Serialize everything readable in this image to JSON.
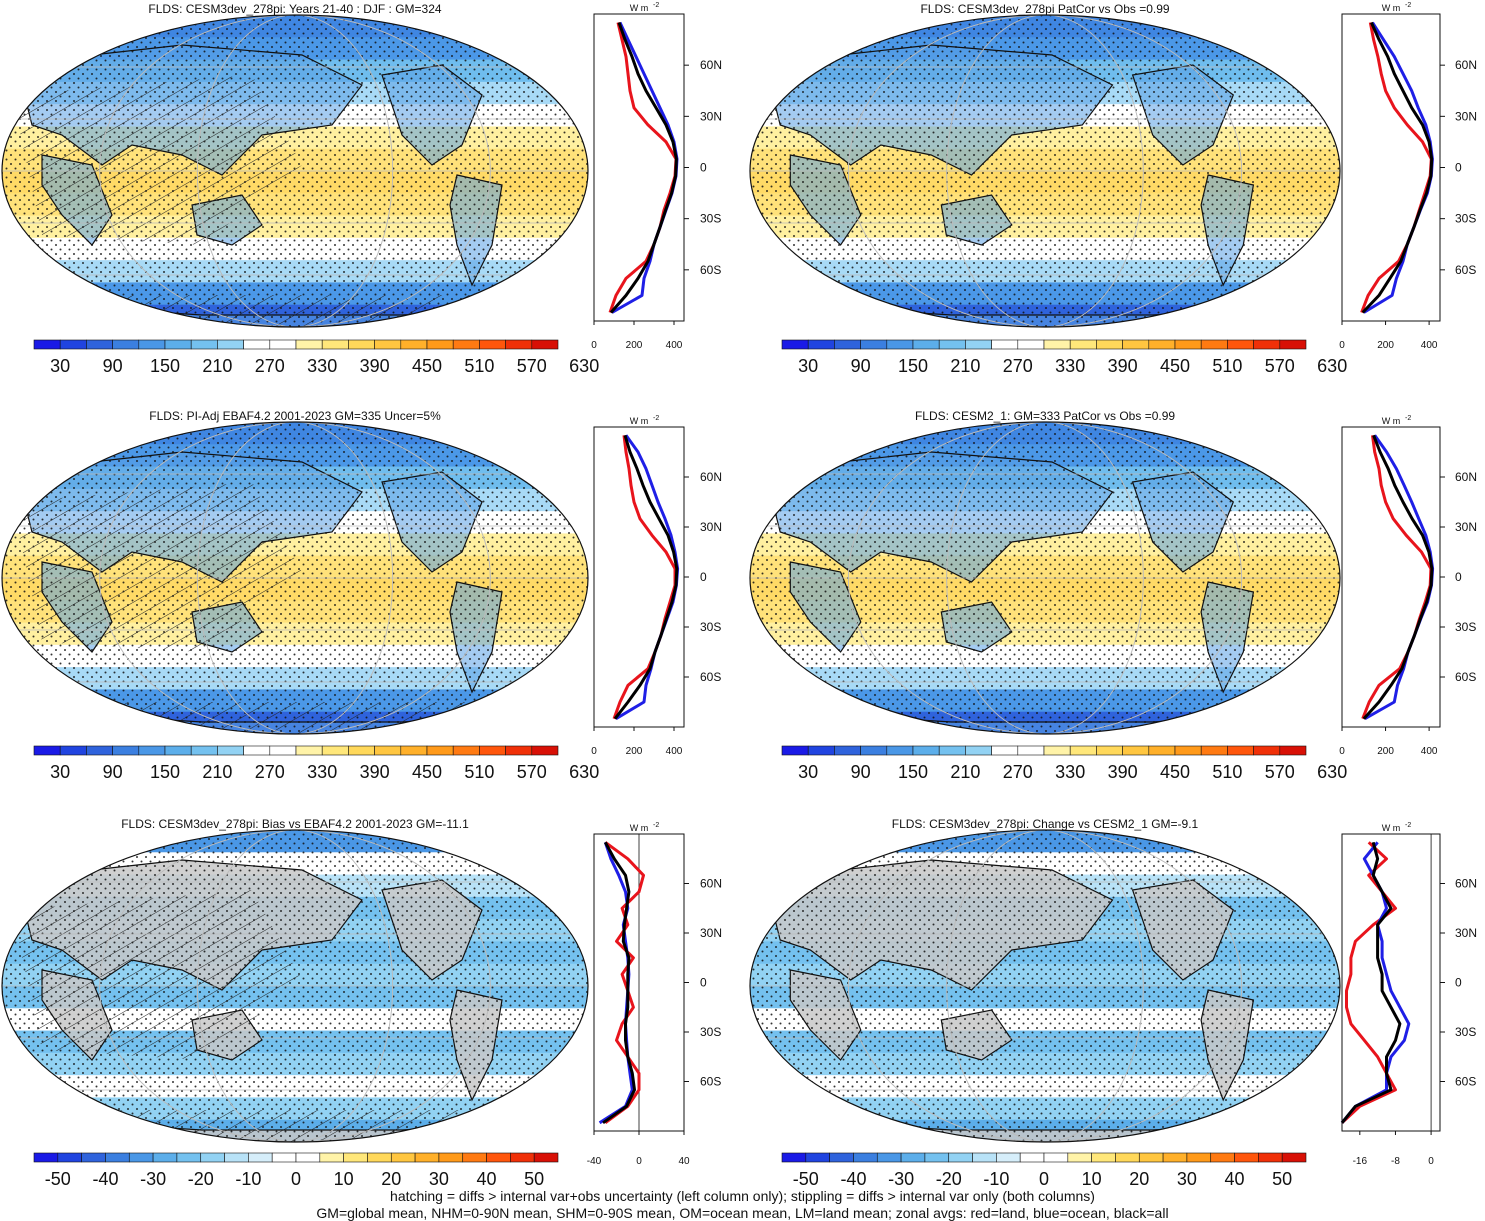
{
  "chart_data": [
    {
      "type": "heatmap",
      "title": "FLDS: CESM3dev_278pi: Years 21-40 : DJF : GM=324",
      "variant": "mean",
      "colorbar": {
        "ticks": [
          "30",
          "90",
          "150",
          "210",
          "270",
          "330",
          "390",
          "450",
          "510",
          "570",
          "630"
        ]
      },
      "zonal_avg": {
        "unit_label": "W m",
        "unit_sup": "-2",
        "xlim": [
          0,
          450
        ],
        "x_ticks": [
          "0",
          "200",
          "400"
        ],
        "lat_ticks": [
          "60N",
          "30N",
          "0",
          "30S",
          "60S"
        ],
        "lat": [
          85,
          75,
          65,
          55,
          45,
          35,
          25,
          15,
          5,
          -5,
          -15,
          -25,
          -35,
          -45,
          -55,
          -65,
          -75,
          -85
        ],
        "series": [
          {
            "name": "red=land",
            "color": "#e8141c",
            "values": [
              120,
              140,
              160,
              170,
              180,
              200,
              270,
              360,
              410,
              405,
              380,
              350,
              330,
              300,
              260,
              160,
              110,
              80
            ]
          },
          {
            "name": "blue=ocean",
            "color": "#1f1fe6",
            "values": [
              130,
              170,
              210,
              250,
              290,
              330,
              370,
              400,
              415,
              410,
              390,
              360,
              330,
              300,
              280,
              250,
              240,
              90
            ]
          },
          {
            "name": "black=all",
            "color": "#000000",
            "values": [
              125,
              155,
              190,
              220,
              260,
              310,
              360,
              395,
              412,
              408,
              388,
              358,
              330,
              300,
              270,
              220,
              160,
              85
            ]
          }
        ]
      }
    },
    {
      "type": "heatmap",
      "title": "FLDS: CESM3dev_278pi PatCor vs Obs =0.99",
      "variant": "mean",
      "colorbar": {
        "ticks": [
          "30",
          "90",
          "150",
          "210",
          "270",
          "330",
          "390",
          "450",
          "510",
          "570",
          "630"
        ]
      },
      "zonal_avg": {
        "unit_label": "W m",
        "unit_sup": "-2",
        "xlim": [
          0,
          450
        ],
        "x_ticks": [
          "0",
          "200",
          "400"
        ],
        "lat_ticks": [
          "60N",
          "30N",
          "0",
          "30S",
          "60S"
        ],
        "lat": [
          85,
          75,
          65,
          55,
          45,
          35,
          25,
          15,
          5,
          -5,
          -15,
          -25,
          -35,
          -45,
          -55,
          -65,
          -75,
          -85
        ],
        "series": [
          {
            "name": "red=land",
            "color": "#e8141c",
            "values": [
              130,
              145,
              165,
              180,
              200,
              240,
              300,
              370,
              410,
              405,
              380,
              355,
              330,
              300,
              260,
              170,
              120,
              90
            ]
          },
          {
            "name": "blue=ocean",
            "color": "#1f1fe6",
            "values": [
              140,
              190,
              240,
              280,
              320,
              350,
              385,
              405,
              415,
              410,
              392,
              360,
              330,
              300,
              280,
              250,
              230,
              100
            ]
          },
          {
            "name": "black=all",
            "color": "#000000",
            "values": [
              135,
              170,
              210,
              240,
              280,
              320,
              370,
              400,
              412,
              408,
              388,
              358,
              330,
              300,
              270,
              220,
              170,
              95
            ]
          }
        ]
      }
    },
    {
      "type": "heatmap",
      "title": "FLDS: PI-Adj EBAF4.2 2001-2023 GM=335 Uncer=5%",
      "variant": "mean",
      "colorbar": {
        "ticks": [
          "30",
          "90",
          "150",
          "210",
          "270",
          "330",
          "390",
          "450",
          "510",
          "570",
          "630"
        ]
      },
      "zonal_avg": {
        "unit_label": "W m",
        "unit_sup": "-2",
        "xlim": [
          0,
          450
        ],
        "x_ticks": [
          "0",
          "200",
          "400"
        ],
        "lat_ticks": [
          "60N",
          "30N",
          "0",
          "30S",
          "60S"
        ],
        "lat": [
          85,
          75,
          65,
          55,
          45,
          35,
          25,
          15,
          5,
          -5,
          -15,
          -25,
          -35,
          -45,
          -55,
          -65,
          -75,
          -85
        ],
        "series": [
          {
            "name": "red=land",
            "color": "#e8141c",
            "values": [
              150,
              160,
              175,
              185,
              200,
              230,
              290,
              360,
              405,
              405,
              380,
              355,
              335,
              305,
              270,
              170,
              130,
              100
            ]
          },
          {
            "name": "blue=ocean",
            "color": "#1f1fe6",
            "values": [
              160,
              220,
              260,
              290,
              320,
              355,
              385,
              405,
              418,
              412,
              395,
              365,
              335,
              305,
              285,
              260,
              250,
              110
            ]
          },
          {
            "name": "black=all",
            "color": "#000000",
            "values": [
              155,
              180,
              215,
              245,
              280,
              325,
              370,
              398,
              414,
              410,
              390,
              362,
              335,
              305,
              280,
              230,
              170,
              105
            ]
          }
        ]
      }
    },
    {
      "type": "heatmap",
      "title": "FLDS: CESM2_1: GM=333 PatCor vs Obs =0.99",
      "variant": "mean",
      "colorbar": {
        "ticks": [
          "30",
          "90",
          "150",
          "210",
          "270",
          "330",
          "390",
          "450",
          "510",
          "570",
          "630"
        ]
      },
      "zonal_avg": {
        "unit_label": "W m",
        "unit_sup": "-2",
        "xlim": [
          0,
          450
        ],
        "x_ticks": [
          "0",
          "200",
          "400"
        ],
        "lat_ticks": [
          "60N",
          "30N",
          "0",
          "30S",
          "60S"
        ],
        "lat": [
          85,
          75,
          65,
          55,
          45,
          35,
          25,
          15,
          5,
          -5,
          -15,
          -25,
          -35,
          -45,
          -55,
          -65,
          -75,
          -85
        ],
        "series": [
          {
            "name": "red=land",
            "color": "#e8141c",
            "values": [
              140,
              150,
              170,
              180,
              200,
              235,
              295,
              365,
              408,
              405,
              382,
              356,
              333,
              303,
              265,
              170,
              125,
              95
            ]
          },
          {
            "name": "blue=ocean",
            "color": "#1f1fe6",
            "values": [
              150,
              205,
              250,
              285,
              320,
              352,
              385,
              405,
              416,
              411,
              393,
              362,
              333,
              303,
              283,
              255,
              240,
              105
            ]
          },
          {
            "name": "black=all",
            "color": "#000000",
            "values": [
              145,
              175,
              212,
              242,
              280,
              322,
              370,
              399,
              413,
              409,
              389,
              360,
              333,
              303,
              275,
              225,
              170,
              100
            ]
          }
        ]
      }
    },
    {
      "type": "heatmap",
      "title": "FLDS: CESM3dev_278pi: Bias vs EBAF4.2 2001-2023 GM=-11.1",
      "variant": "diff",
      "colorbar": {
        "ticks": [
          "-50",
          "-40",
          "-30",
          "-20",
          "-10",
          "0",
          "10",
          "20",
          "30",
          "40",
          "50"
        ]
      },
      "zonal_avg": {
        "unit_label": "W m",
        "unit_sup": "-2",
        "xlim": [
          -40,
          40
        ],
        "x_ticks": [
          "-40",
          "0",
          "40"
        ],
        "lat_ticks": [
          "60N",
          "30N",
          "0",
          "30S",
          "60S"
        ],
        "lat": [
          85,
          75,
          65,
          55,
          45,
          35,
          25,
          15,
          5,
          -5,
          -15,
          -25,
          -35,
          -45,
          -55,
          -65,
          -75,
          -85
        ],
        "series": [
          {
            "name": "red=land",
            "color": "#e8141c",
            "values": [
              -30,
              -10,
              4,
              0,
              -15,
              -10,
              -20,
              -5,
              -15,
              -10,
              -5,
              -15,
              -20,
              -10,
              0,
              0,
              -10,
              -30
            ]
          },
          {
            "name": "blue=ocean",
            "color": "#1f1fe6",
            "values": [
              -30,
              -25,
              -18,
              -12,
              -10,
              -14,
              -12,
              -10,
              -9,
              -10,
              -11,
              -12,
              -11,
              -10,
              -8,
              -6,
              -12,
              -35
            ]
          },
          {
            "name": "black=all",
            "color": "#000000",
            "values": [
              -30,
              -22,
              -12,
              -9,
              -11,
              -13,
              -14,
              -9,
              -10,
              -10,
              -10,
              -12,
              -12,
              -10,
              -6,
              -4,
              -11,
              -32
            ]
          }
        ]
      }
    },
    {
      "type": "heatmap",
      "title": "FLDS: CESM3dev_278pi: Change vs CESM2_1 GM=-9.1",
      "variant": "diff",
      "colorbar": {
        "ticks": [
          "-50",
          "-40",
          "-30",
          "-20",
          "-10",
          "0",
          "10",
          "20",
          "30",
          "40",
          "50"
        ]
      },
      "zonal_avg": {
        "unit_label": "W m",
        "unit_sup": "-2",
        "xlim": [
          -20,
          2
        ],
        "x_ticks": [
          "-16",
          "-8",
          "0"
        ],
        "lat_ticks": [
          "60N",
          "30N",
          "0",
          "30S",
          "60S"
        ],
        "lat": [
          85,
          75,
          65,
          55,
          45,
          35,
          25,
          15,
          5,
          -5,
          -15,
          -25,
          -35,
          -45,
          -55,
          -65,
          -75,
          -85
        ],
        "series": [
          {
            "name": "red=land",
            "color": "#e8141c",
            "values": [
              -14,
              -10,
              -14,
              -11,
              -8,
              -13,
              -17,
              -18,
              -18,
              -19,
              -19,
              -18,
              -15,
              -12,
              -10,
              -8,
              -16,
              -20
            ]
          },
          {
            "name": "blue=ocean",
            "color": "#1f1fe6",
            "values": [
              -12,
              -15,
              -13,
              -11,
              -10,
              -12,
              -11,
              -11,
              -10,
              -9,
              -7,
              -5,
              -6,
              -9,
              -10,
              -10,
              -17,
              -20
            ]
          },
          {
            "name": "black=all",
            "color": "#000000",
            "values": [
              -13,
              -12,
              -13,
              -11,
              -9,
              -12,
              -12,
              -12,
              -11,
              -11,
              -9,
              -7,
              -8,
              -10,
              -10,
              -9,
              -17,
              -20
            ]
          }
        ]
      }
    }
  ],
  "footer": {
    "line1": "hatching = diffs > internal var+obs uncertainty (left column only); stippling = diffs > internal var only (both columns)",
    "line2": "GM=global mean, NHM=0-90N mean, SHM=0-90S mean, OM=ocean mean, LM=land mean; zonal avgs: red=land, blue=ocean, black=all"
  },
  "colors": {
    "mean_palette": [
      "#1a1ae6",
      "#2044e0",
      "#2f63dc",
      "#3b7fe0",
      "#4a97e6",
      "#5caeea",
      "#74c1ef",
      "#92d2f3",
      "#ffffff",
      "#ffffff",
      "#fff3a8",
      "#ffe77a",
      "#ffd85a",
      "#ffc640",
      "#ffb02a",
      "#ff9a1a",
      "#ff7a12",
      "#ff560c",
      "#f03008",
      "#d81006"
    ],
    "diff_palette": [
      "#1a1ae6",
      "#2044e0",
      "#2f63dc",
      "#3b7fe0",
      "#4a97e6",
      "#5caeea",
      "#74c1ef",
      "#92d2f3",
      "#b8e2f7",
      "#d6eefa",
      "#ffffff",
      "#ffffff",
      "#fff3a8",
      "#ffe77a",
      "#ffd85a",
      "#ffc640",
      "#ffb02a",
      "#ff9a1a",
      "#ff7a12",
      "#ff560c",
      "#f03008",
      "#d81006"
    ],
    "land_missing": "#c8c8c8"
  }
}
